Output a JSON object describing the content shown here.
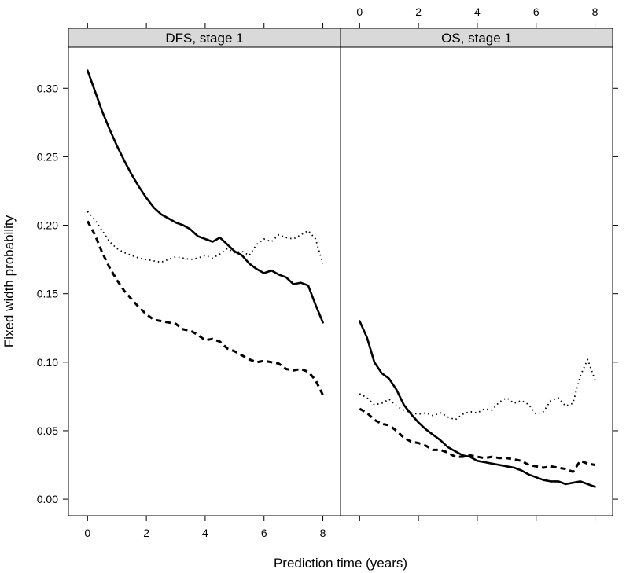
{
  "chart_data": {
    "type": "line",
    "xlabel": "Prediction time (years)",
    "ylabel": "Fixed width probability",
    "xlim": [
      -0.65,
      8.6
    ],
    "ylim": [
      -0.012,
      0.33
    ],
    "xticks": [
      "0",
      "2",
      "4",
      "6",
      "8"
    ],
    "yticks": [
      "0.00",
      "0.05",
      "0.10",
      "0.15",
      "0.20",
      "0.25",
      "0.30"
    ],
    "grid": false,
    "panels": [
      {
        "title": "DFS, stage 1",
        "series": [
          {
            "style": "solid",
            "x": [
              0,
              0.25,
              0.5,
              0.75,
              1,
              1.25,
              1.5,
              1.75,
              2,
              2.25,
              2.5,
              2.75,
              3,
              3.25,
              3.5,
              3.75,
              4,
              4.25,
              4.5,
              4.75,
              5,
              5.25,
              5.5,
              5.75,
              6,
              6.25,
              6.5,
              6.75,
              7,
              7.25,
              7.5,
              7.75,
              8
            ],
            "y": [
              0.313,
              0.298,
              0.283,
              0.27,
              0.258,
              0.247,
              0.237,
              0.228,
              0.22,
              0.213,
              0.208,
              0.205,
              0.202,
              0.2,
              0.197,
              0.192,
              0.19,
              0.188,
              0.191,
              0.186,
              0.181,
              0.178,
              0.172,
              0.168,
              0.165,
              0.167,
              0.164,
              0.162,
              0.157,
              0.158,
              0.156,
              0.142,
              0.129
            ]
          },
          {
            "style": "dashed",
            "x": [
              0,
              0.25,
              0.5,
              0.75,
              1,
              1.25,
              1.5,
              1.75,
              2,
              2.25,
              2.5,
              2.75,
              3,
              3.25,
              3.5,
              3.75,
              4,
              4.25,
              4.5,
              4.75,
              5,
              5.25,
              5.5,
              5.75,
              6,
              6.25,
              6.5,
              6.75,
              7,
              7.25,
              7.5,
              7.75,
              8
            ],
            "y": [
              0.203,
              0.193,
              0.18,
              0.169,
              0.16,
              0.152,
              0.146,
              0.14,
              0.135,
              0.131,
              0.13,
              0.129,
              0.128,
              0.124,
              0.123,
              0.12,
              0.116,
              0.117,
              0.115,
              0.11,
              0.108,
              0.105,
              0.102,
              0.1,
              0.101,
              0.1,
              0.099,
              0.095,
              0.094,
              0.095,
              0.093,
              0.087,
              0.076
            ]
          },
          {
            "style": "dotted",
            "x": [
              0,
              0.25,
              0.5,
              0.75,
              1,
              1.25,
              1.5,
              1.75,
              2,
              2.25,
              2.5,
              2.75,
              3,
              3.25,
              3.5,
              3.75,
              4,
              4.25,
              4.5,
              4.75,
              5,
              5.25,
              5.5,
              5.75,
              6,
              6.25,
              6.5,
              6.75,
              7,
              7.25,
              7.5,
              7.75,
              8
            ],
            "y": [
              0.21,
              0.204,
              0.196,
              0.188,
              0.183,
              0.18,
              0.178,
              0.176,
              0.175,
              0.174,
              0.173,
              0.175,
              0.177,
              0.176,
              0.175,
              0.176,
              0.178,
              0.176,
              0.179,
              0.183,
              0.18,
              0.181,
              0.178,
              0.186,
              0.19,
              0.188,
              0.193,
              0.191,
              0.19,
              0.193,
              0.196,
              0.19,
              0.172
            ]
          }
        ]
      },
      {
        "title": "OS, stage 1",
        "series": [
          {
            "style": "solid",
            "x": [
              0,
              0.25,
              0.5,
              0.75,
              1,
              1.25,
              1.5,
              1.75,
              2,
              2.25,
              2.5,
              2.75,
              3,
              3.25,
              3.5,
              3.75,
              4,
              4.25,
              4.5,
              4.75,
              5,
              5.25,
              5.5,
              5.75,
              6,
              6.25,
              6.5,
              6.75,
              7,
              7.25,
              7.5,
              7.75,
              8
            ],
            "y": [
              0.13,
              0.118,
              0.1,
              0.092,
              0.088,
              0.08,
              0.069,
              0.062,
              0.056,
              0.051,
              0.047,
              0.043,
              0.038,
              0.035,
              0.032,
              0.031,
              0.028,
              0.027,
              0.026,
              0.025,
              0.024,
              0.023,
              0.021,
              0.018,
              0.016,
              0.014,
              0.013,
              0.013,
              0.011,
              0.012,
              0.013,
              0.011,
              0.009
            ]
          },
          {
            "style": "dashed",
            "x": [
              0,
              0.25,
              0.5,
              0.75,
              1,
              1.25,
              1.5,
              1.75,
              2,
              2.25,
              2.5,
              2.75,
              3,
              3.25,
              3.5,
              3.75,
              4,
              4.25,
              4.5,
              4.75,
              5,
              5.25,
              5.5,
              5.75,
              6,
              6.25,
              6.5,
              6.75,
              7,
              7.25,
              7.5,
              7.75,
              8
            ],
            "y": [
              0.066,
              0.063,
              0.058,
              0.055,
              0.054,
              0.05,
              0.045,
              0.042,
              0.041,
              0.039,
              0.036,
              0.036,
              0.034,
              0.031,
              0.031,
              0.032,
              0.031,
              0.03,
              0.031,
              0.03,
              0.03,
              0.029,
              0.028,
              0.025,
              0.024,
              0.023,
              0.024,
              0.023,
              0.022,
              0.02,
              0.028,
              0.026,
              0.025
            ]
          },
          {
            "style": "dotted",
            "x": [
              0,
              0.25,
              0.5,
              0.75,
              1,
              1.25,
              1.5,
              1.75,
              2,
              2.25,
              2.5,
              2.75,
              3,
              3.25,
              3.5,
              3.75,
              4,
              4.25,
              4.5,
              4.75,
              5,
              5.25,
              5.5,
              5.75,
              6,
              6.25,
              6.5,
              6.75,
              7,
              7.25,
              7.5,
              7.75,
              8
            ],
            "y": [
              0.077,
              0.074,
              0.069,
              0.07,
              0.073,
              0.068,
              0.065,
              0.063,
              0.062,
              0.063,
              0.061,
              0.063,
              0.06,
              0.058,
              0.062,
              0.064,
              0.063,
              0.066,
              0.065,
              0.071,
              0.074,
              0.07,
              0.072,
              0.069,
              0.062,
              0.064,
              0.072,
              0.074,
              0.068,
              0.07,
              0.09,
              0.102,
              0.087
            ]
          }
        ]
      }
    ]
  }
}
